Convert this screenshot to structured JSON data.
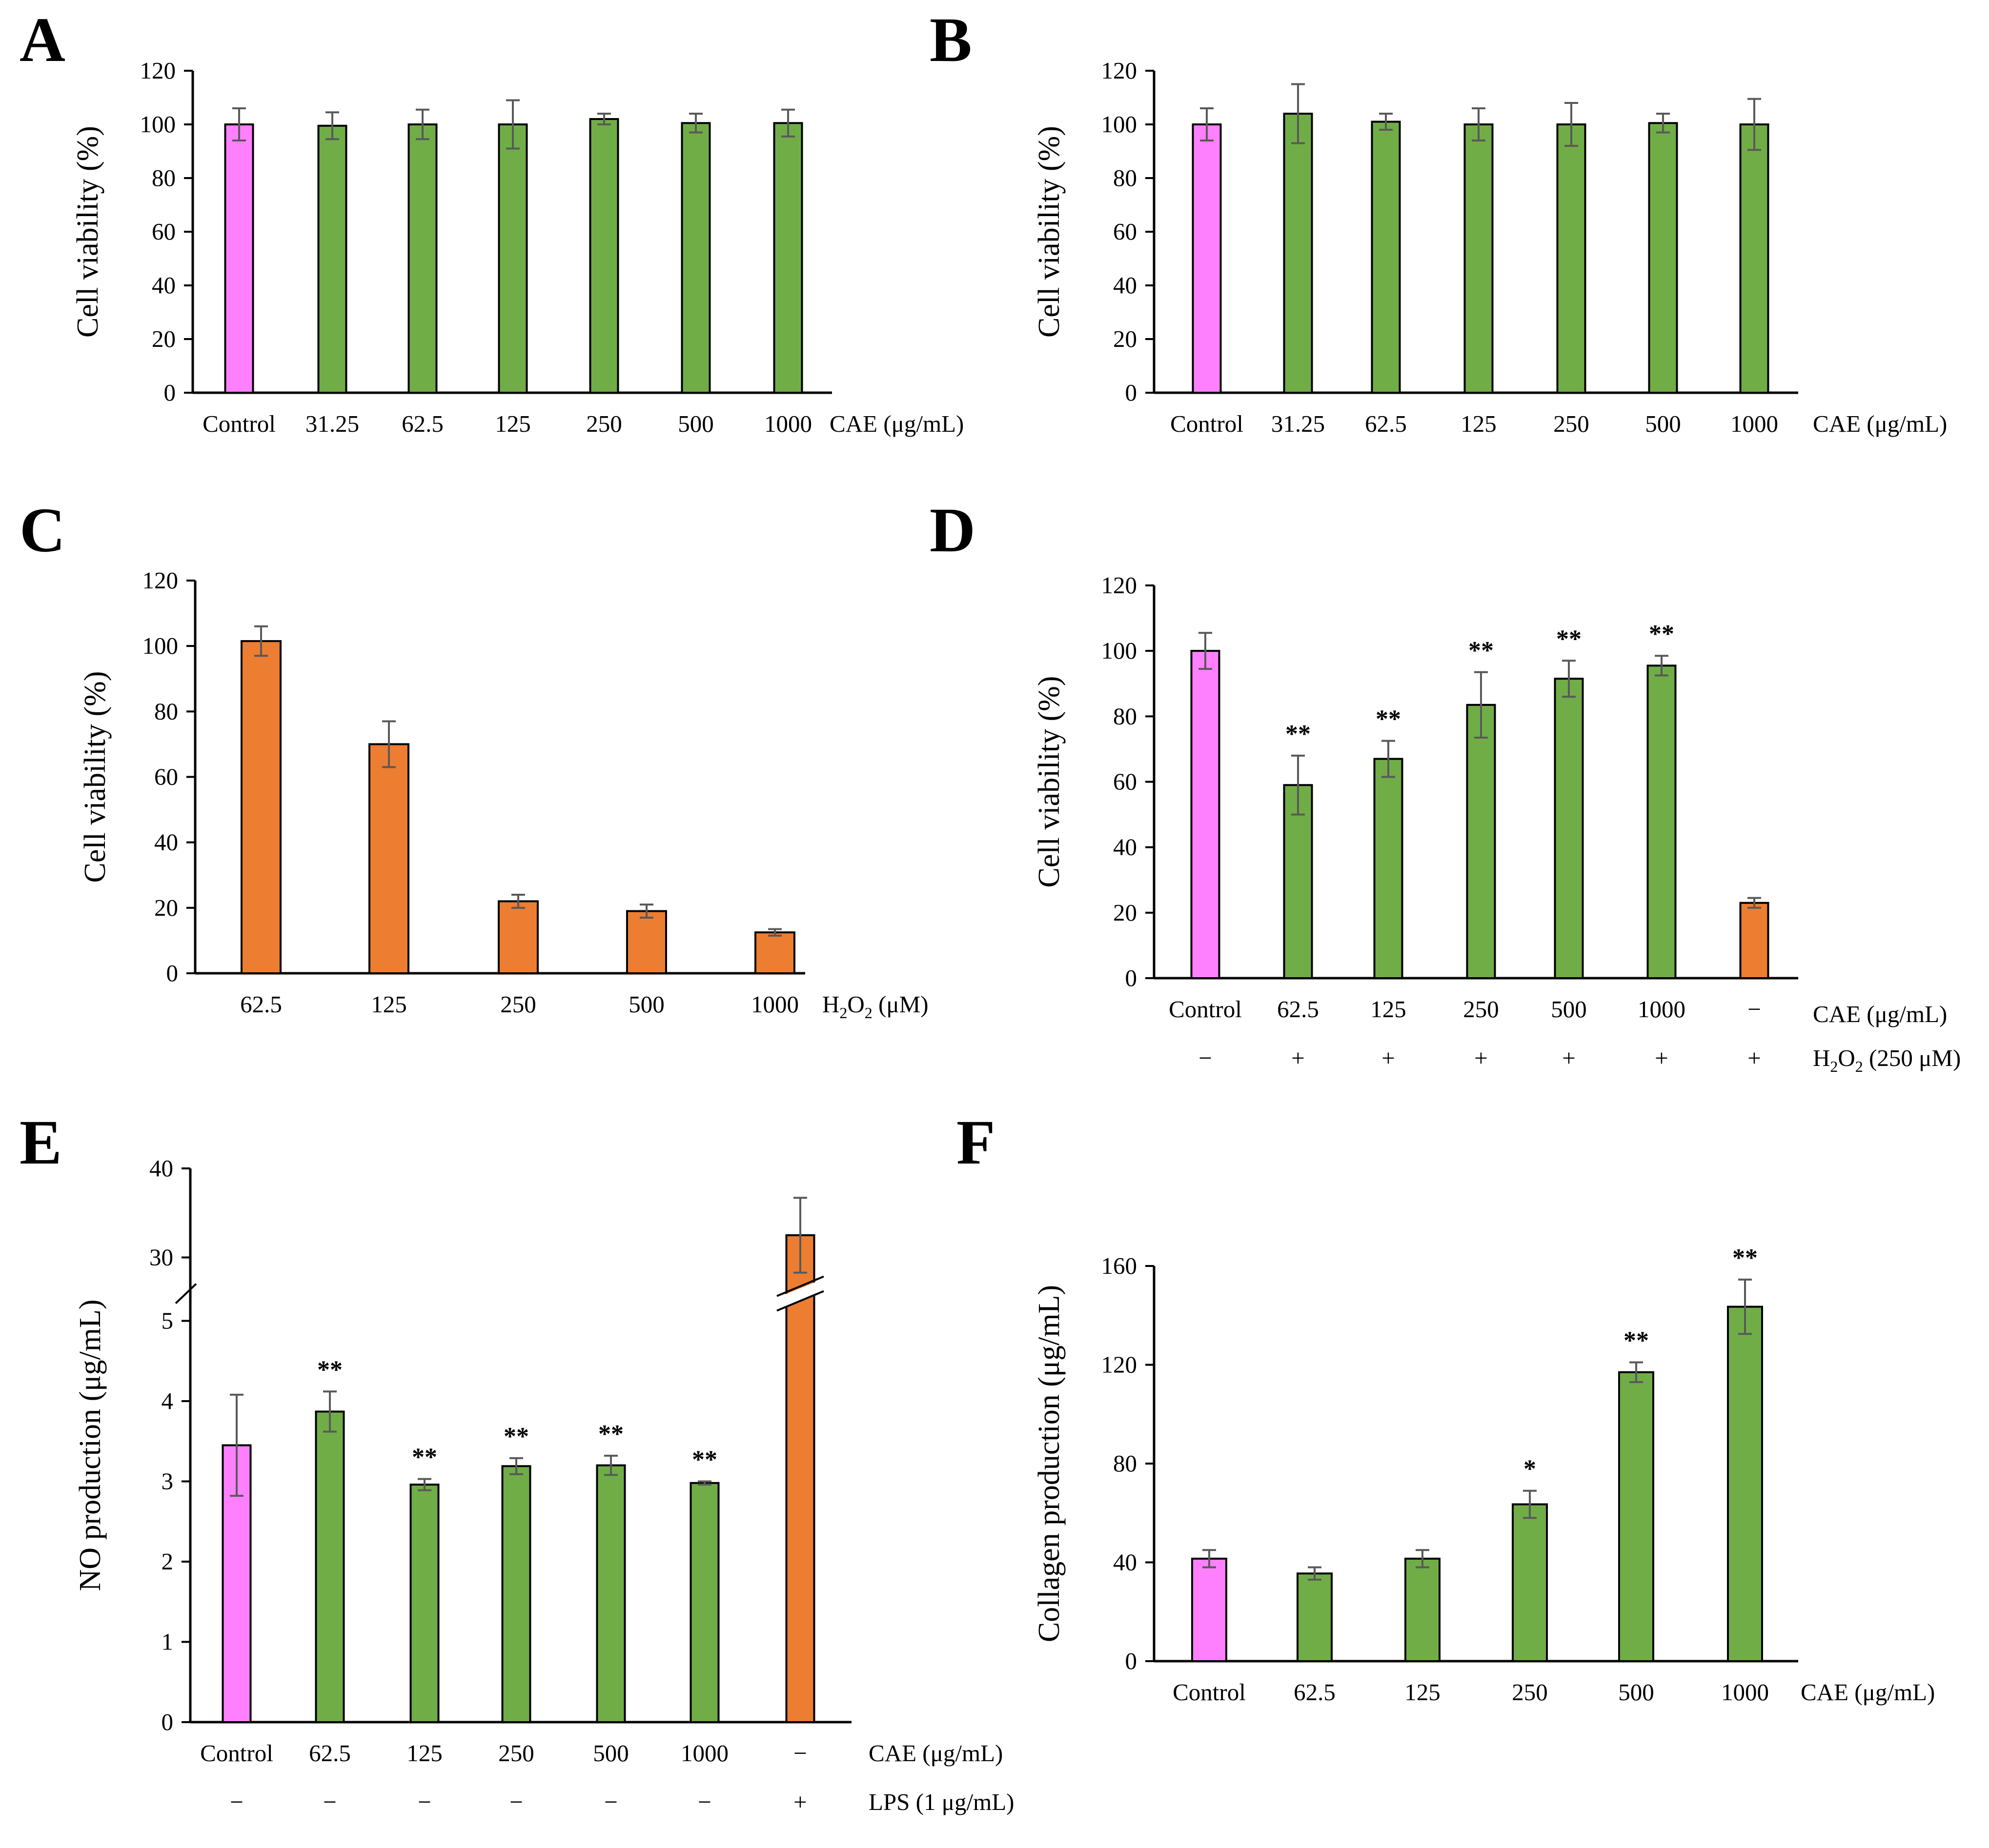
{
  "colors": {
    "control": "#FF80FF",
    "treatment": "#70AD47",
    "h2o2": "#ED7D31",
    "axis": "#000000",
    "error_bar": "#595959"
  },
  "chart_data": [
    {
      "id": "A",
      "label": "A",
      "type": "bar",
      "ylabel": "Cell viability (%)",
      "ylim": [
        0,
        120
      ],
      "yticks": [
        0,
        20,
        40,
        60,
        80,
        100,
        120
      ],
      "categories": [
        "Control",
        "31.25",
        "62.5",
        "125",
        "250",
        "500",
        "1000"
      ],
      "unit": "CAE (μg/mL)",
      "values": [
        100,
        99.5,
        100,
        100,
        102,
        100.5,
        100.5
      ],
      "errors": [
        6,
        5,
        5.5,
        9,
        2,
        3.5,
        5
      ],
      "colors": [
        "control",
        "treatment",
        "treatment",
        "treatment",
        "treatment",
        "treatment",
        "treatment"
      ],
      "sig": [
        "",
        "",
        "",
        "",
        "",
        "",
        ""
      ]
    },
    {
      "id": "B",
      "label": "B",
      "type": "bar",
      "ylabel": "Cell viability (%)",
      "ylim": [
        0,
        120
      ],
      "yticks": [
        0,
        20,
        40,
        60,
        80,
        100,
        120
      ],
      "categories": [
        "Control",
        "31.25",
        "62.5",
        "125",
        "250",
        "500",
        "1000"
      ],
      "unit": "CAE (μg/mL)",
      "values": [
        100,
        104,
        101,
        100,
        100,
        100.5,
        100
      ],
      "errors": [
        6,
        11,
        3,
        6,
        8,
        3.5,
        9.5
      ],
      "colors": [
        "control",
        "treatment",
        "treatment",
        "treatment",
        "treatment",
        "treatment",
        "treatment"
      ],
      "sig": [
        "",
        "",
        "",
        "",
        "",
        "",
        ""
      ]
    },
    {
      "id": "C",
      "label": "C",
      "type": "bar",
      "ylabel": "Cell viability (%)",
      "ylim": [
        0,
        120
      ],
      "yticks": [
        0,
        20,
        40,
        60,
        80,
        100,
        120
      ],
      "categories": [
        "62.5",
        "125",
        "250",
        "500",
        "1000"
      ],
      "unit_main": "H",
      "unit_sub": "2",
      "unit_main2": "O",
      "unit_sub2": "2",
      "unit_tail": " (μM)",
      "values": [
        101.5,
        70,
        22,
        19,
        12.5
      ],
      "errors": [
        4.5,
        7,
        2,
        2,
        1
      ],
      "colors": [
        "h2o2",
        "h2o2",
        "h2o2",
        "h2o2",
        "h2o2"
      ],
      "sig": [
        "",
        "",
        "",
        "",
        ""
      ]
    },
    {
      "id": "D",
      "label": "D",
      "type": "bar",
      "ylabel": "Cell viability (%)",
      "ylim": [
        0,
        120
      ],
      "yticks": [
        0,
        20,
        40,
        60,
        80,
        100,
        120
      ],
      "categories": [
        "Control",
        "62.5",
        "125",
        "250",
        "500",
        "1000",
        "−"
      ],
      "unit": "CAE (μg/mL)",
      "signs": [
        "−",
        "+",
        "+",
        "+",
        "+",
        "+",
        "+"
      ],
      "sign_main": "H",
      "sign_sub": "2",
      "sign_main2": "O",
      "sign_sub2": "2",
      "sign_tail": " (250 μM)",
      "values": [
        100,
        59,
        67,
        83.5,
        91.5,
        95.5,
        23
      ],
      "errors": [
        5.5,
        9,
        5.5,
        10,
        5.5,
        3,
        1.5
      ],
      "colors": [
        "control",
        "treatment",
        "treatment",
        "treatment",
        "treatment",
        "treatment",
        "h2o2"
      ],
      "sig": [
        "",
        "**",
        "**",
        "**",
        "**",
        "**",
        ""
      ]
    },
    {
      "id": "E",
      "label": "E",
      "type": "bar",
      "ylabel": "NO production (μg/mL)",
      "ylim": [
        0,
        40
      ],
      "axis_break": [
        5,
        30
      ],
      "yticks": [
        0,
        1,
        2,
        3,
        4,
        5,
        30,
        40
      ],
      "categories": [
        "Control",
        "62.5",
        "125",
        "250",
        "500",
        "1000",
        "−"
      ],
      "unit": "CAE (μg/mL)",
      "signs": [
        "−",
        "−",
        "−",
        "−",
        "−",
        "−",
        "+"
      ],
      "sign_label": "LPS (1 μg/mL)",
      "values": [
        3.45,
        3.87,
        2.96,
        3.19,
        3.2,
        2.98,
        32.5
      ],
      "errors": [
        0.63,
        0.25,
        0.07,
        0.1,
        0.12,
        0.02,
        4.2
      ],
      "colors": [
        "control",
        "treatment",
        "treatment",
        "treatment",
        "treatment",
        "treatment",
        "h2o2"
      ],
      "sig": [
        "",
        "**",
        "**",
        "**",
        "**",
        "**",
        ""
      ]
    },
    {
      "id": "F",
      "label": "F",
      "type": "bar",
      "ylabel": "Collagen production (μg/mL)",
      "ylim": [
        0,
        160
      ],
      "yticks": [
        0,
        40,
        80,
        120,
        160
      ],
      "categories": [
        "Control",
        "62.5",
        "125",
        "250",
        "500",
        "1000"
      ],
      "unit": "CAE (μg/mL)",
      "values": [
        41.5,
        35.5,
        41.5,
        63.5,
        117,
        143.5
      ],
      "errors": [
        3.5,
        2.5,
        3.5,
        5.5,
        4,
        11
      ],
      "colors": [
        "control",
        "treatment",
        "treatment",
        "treatment",
        "treatment",
        "treatment"
      ],
      "sig": [
        "",
        "",
        "",
        "*",
        "**",
        "**"
      ]
    }
  ]
}
